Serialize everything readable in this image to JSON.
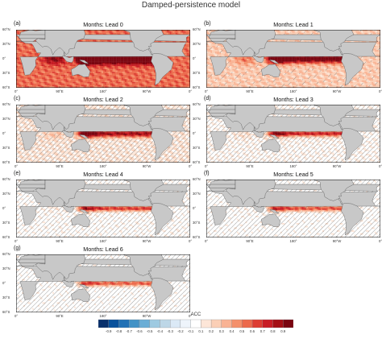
{
  "figure_title": "Damped-persistence model",
  "chart_data": [
    {
      "type": "heatmap",
      "label": "(a)",
      "subtitle": "Months: Lead 0",
      "lead": 0
    },
    {
      "type": "heatmap",
      "label": "(b)",
      "subtitle": "Months: Lead 1",
      "lead": 1
    },
    {
      "type": "heatmap",
      "label": "(c)",
      "subtitle": "Months: Lead 2",
      "lead": 2
    },
    {
      "type": "heatmap",
      "label": "(d)",
      "subtitle": "Months: Lead 3",
      "lead": 3
    },
    {
      "type": "heatmap",
      "label": "(e)",
      "subtitle": "Months: Lead 4",
      "lead": 4
    },
    {
      "type": "heatmap",
      "label": "(f)",
      "subtitle": "Months: Lead 5",
      "lead": 5
    },
    {
      "type": "heatmap",
      "label": "(g)",
      "subtitle": "Months: Lead 6",
      "lead": 6
    }
  ],
  "axes": {
    "lat_ticks": [
      "60°N",
      "30°N",
      "0°",
      "30°S",
      "60°S"
    ],
    "lon_ticks": [
      "0°",
      "90°E",
      "180°",
      "90°W",
      "0°"
    ]
  },
  "colorbar": {
    "label": "ACC",
    "ticks": [
      "-0.9",
      "-0.8",
      "-0.7",
      "-0.6",
      "-0.5",
      "-0.4",
      "-0.3",
      "-0.2",
      "-0.1",
      "0.1",
      "0.2",
      "0.3",
      "0.4",
      "0.5",
      "0.6",
      "0.7",
      "0.8",
      "0.9"
    ],
    "colors": [
      "#08306b",
      "#08519c",
      "#2171b5",
      "#4292c6",
      "#6baed6",
      "#9ecae1",
      "#bdd7e7",
      "#dbe9f6",
      "#eef4fb",
      "#ffffff",
      "#fde6d8",
      "#fbcfb6",
      "#f9b394",
      "#f4906b",
      "#ec6a4c",
      "#dd3d32",
      "#c81d25",
      "#a50f15",
      "#7a0510"
    ]
  },
  "land_color": "#c8c8c8",
  "hatch_color": "#555555"
}
